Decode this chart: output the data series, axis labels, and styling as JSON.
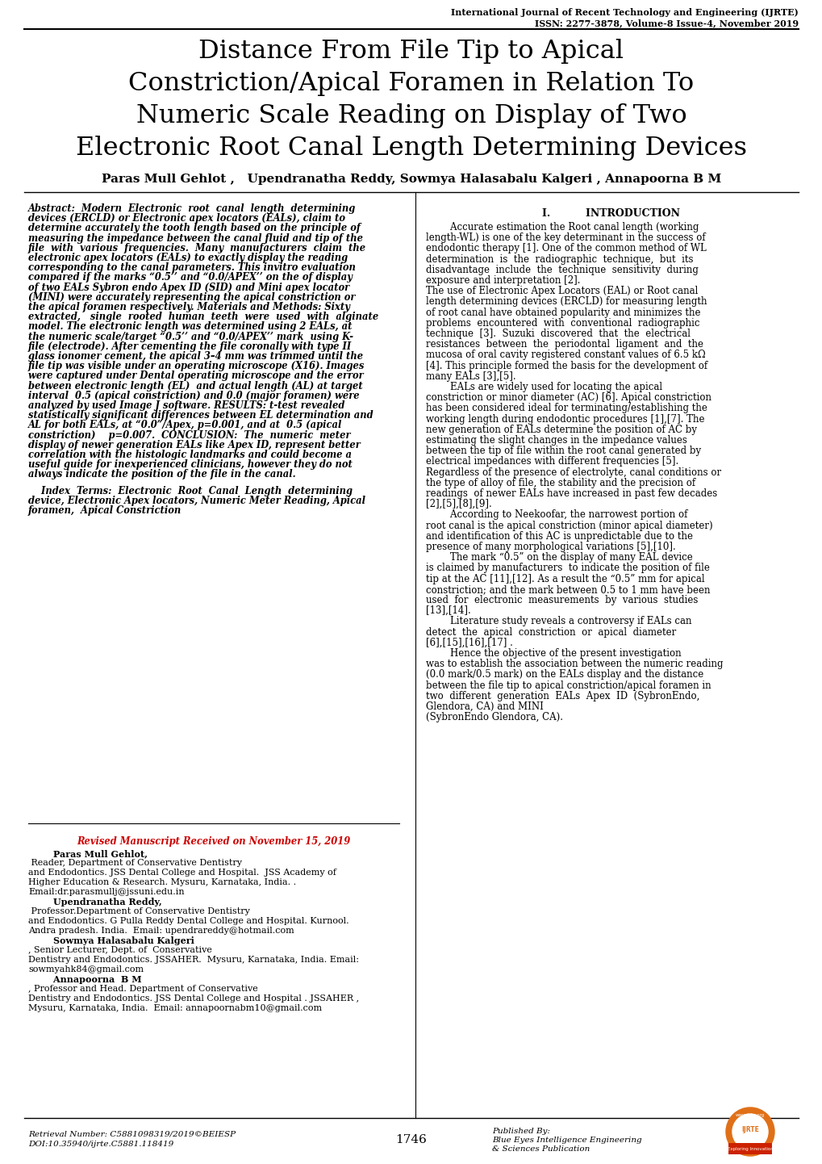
{
  "header_line1": "International Journal of Recent Technology and Engineering (IJRTE)",
  "header_line2": "ISSN: 2277-3878, Volume-8 Issue-4, November 2019",
  "title_lines": [
    "Distance From File Tip to Apical",
    "Constriction/Apical Foramen in Relation To",
    "Numeric Scale Reading on Display of Two",
    "Electronic Root Canal Length Determining Devices"
  ],
  "authors": "Paras Mull Gehlot ,   Upendranatha Reddy, Sowmya Halasabalu Kalgeri , Annapoorna B M",
  "abstract_lines": [
    "Abstract:  Modern  Electronic  root  canal  length  determining",
    "devices (ERCLD) or Electronic apex locators (EALs), claim to",
    "determine accurately the tooth length based on the principle of",
    "measuring the impedance between the canal fluid and tip of the",
    "file  with  various  frequencies.  Many  manufacturers  claim  the",
    "electronic apex locators (EALs) to exactly display the reading",
    "corresponding to the canal parameters. This invitro evaluation",
    "compared if the marks “0.5’’ and “0.0/APEX’’ on the of display",
    "of two EALs Sybron endo Apex ID (SID) and Mini apex locator",
    "(MINI) were accurately representing the apical constriction or",
    "the apical foramen respectively. Materials and Methods: Sixty",
    "extracted,   single  rooted  human  teeth  were  used  with  alginate",
    "model. The electronic length was determined using 2 EALs, at",
    "the numeric scale/target “0.5’’ and “0.0/APEX’’ mark  using K-",
    "file (electrode). After cementing the file coronally with type II",
    "glass ionomer cement, the apical 3–4 mm was trimmed until the",
    "file tip was visible under an operating microscope (X16). Images",
    "were captured under Dental operating microscope and the error",
    "between electronic length (EL)  and actual length (AL) at target",
    "interval  0.5 (apical constriction) and 0.0 (major foramen) were",
    "analyzed by used Image J software. RESULTS: t-test revealed",
    "statistically significant differences between EL determination and",
    "AL for both EALs, at “0.0”/Apex, p=0.001, and at  0.5 (apical",
    "constriction)    p=0.007.  CONCLUSION:  The  numeric  meter",
    "display of newer generation EALs like Apex ID, represent better",
    "correlation with the histologic landmarks and could become a",
    "useful guide for inexperienced clinicians, however they do not",
    "always indicate the position of the file in the canal."
  ],
  "index_lines": [
    "    Index  Terms:  Electronic  Root  Canal  Length  determining",
    "device, Electronic Apex locators, Numeric Meter Reading, Apical",
    "foramen,  Apical Constriction"
  ],
  "revised_label": "Revised Manuscript Received on November 15, 2019",
  "intro_heading": "I.          INTRODUCTION",
  "intro_lines": [
    "        Accurate estimation the Root canal length (working",
    "length-WL) is one of the key determinant in the success of",
    "endodontic therapy [1]. One of the common method of WL",
    "determination  is  the  radiographic  technique,  but  its",
    "disadvantage  include  the  technique  sensitivity  during",
    "exposure and interpretation [2].",
    "The use of Electronic Apex Locators (EAL) or Root canal",
    "length determining devices (ERCLD) for measuring length",
    "of root canal have obtained popularity and minimizes the",
    "problems  encountered  with  conventional  radiographic",
    "technique  [3].  Suzuki  discovered  that  the  electrical",
    "resistances  between  the  periodontal  ligament  and  the",
    "mucosa of oral cavity registered constant values of 6.5 kΩ",
    "[4]. This principle formed the basis for the development of",
    "many EALs [3],[5].",
    "        EALs are widely used for locating the apical",
    "constriction or minor diameter (AC) [6]. Apical constriction",
    "has been considered ideal for terminating/establishing the",
    "working length during endodontic procedures [1],[7]. The",
    "new generation of EALs determine the position of AC by",
    "estimating the slight changes in the impedance values",
    "between the tip of file within the root canal generated by",
    "electrical impedances with different frequencies [5].",
    "Regardless of the presence of electrolyte, canal conditions or",
    "the type of alloy of file, the stability and the precision of",
    "readings  of newer EALs have increased in past few decades",
    "[2],[5],[8],[9].",
    "        According to Neekoofar, the narrowest portion of",
    "root canal is the apical constriction (minor apical diameter)",
    "and identification of this AC is unpredictable due to the",
    "presence of many morphological variations [5],[10].",
    "        The mark “0.5” on the display of many EAL device",
    "is claimed by manufacturers  to indicate the position of file",
    "tip at the AC [11],[12]. As a result the “0.5” mm for apical",
    "constriction; and the mark between 0.5 to 1 mm have been",
    "used  for  electronic  measurements  by  various  studies",
    "[13],[14].",
    "        Literature study reveals a controversy if EALs can",
    "detect  the  apical  constriction  or  apical  diameter",
    "[6],[15],[16],[17] .",
    "        Hence the objective of the present investigation",
    "was to establish the association between the numeric reading",
    "(0.0 mark/0.5 mark) on the EALs display and the distance",
    "between the file tip to apical constriction/apical foramen in",
    "two  different  generation  EALs  Apex  ID  (SybronEndo,",
    "Glendora, CA) and MINI"
  ],
  "intro_last": "(SybronEndo Glendora, CA).",
  "author_detail_lines": [
    [
      "bold",
      "        Paras Mull Gehlot,"
    ],
    [
      "normal",
      " Reader, Department of Conservative Dentistry"
    ],
    [
      "normal",
      "and Endodontics. JSS Dental College and Hospital.  JSS Academy of"
    ],
    [
      "normal",
      "Higher Education & Research. Mysuru, Karnataka, India. ."
    ],
    [
      "normal",
      "Email:dr.parasmullj@jssuni.edu.in"
    ],
    [
      "bold",
      "        Upendranatha Reddy,"
    ],
    [
      "normal",
      " Professor.Department of Conservative Dentistry"
    ],
    [
      "normal",
      "and Endodontics. G Pulla Reddy Dental College and Hospital. Kurnool."
    ],
    [
      "normal",
      "Andra pradesh. India.  Email: upendrareddy@hotmail.com"
    ],
    [
      "bold",
      "        Sowmya Halasabalu Kalgeri"
    ],
    [
      "normal",
      ", Senior Lecturer, Dept. of  Conservative"
    ],
    [
      "normal",
      "Dentistry and Endodontics. JSSAHER.  Mysuru, Karnataka, India. Email:"
    ],
    [
      "normal",
      "sowmyahk84@gmail.com"
    ],
    [
      "bold",
      "        Annapoorna  B M"
    ],
    [
      "normal",
      ", Professor and Head. Department of Conservative"
    ],
    [
      "normal",
      "Dentistry and Endodontics. JSS Dental College and Hospital . JSSAHER ,"
    ],
    [
      "normal",
      "Mysuru, Karnataka, India.  Email: annapoornabm10@gmail.com"
    ]
  ],
  "retrieval_number": "Retrieval Number: C5881098319/2019©BEIESP",
  "doi": "DOI:10.35940/ijrte.C5881.118419",
  "page_number": "1746",
  "published_by": "Published By:",
  "publisher_name": "Blue Eyes Intelligence Engineering\n& Sciences Publication",
  "background_color": "#ffffff",
  "text_color": "#000000"
}
